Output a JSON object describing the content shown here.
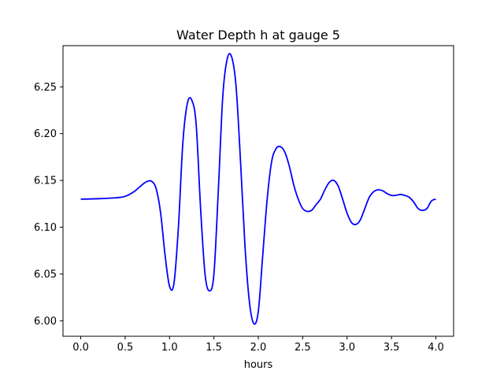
{
  "chart_data": {
    "type": "line",
    "title": "Water Depth h at gauge 5",
    "xlabel": "hours",
    "ylabel": "",
    "xlim": [
      -0.2,
      4.2
    ],
    "ylim": [
      5.9835,
      6.294
    ],
    "xticks": [
      0.0,
      0.5,
      1.0,
      1.5,
      2.0,
      2.5,
      3.0,
      3.5,
      4.0
    ],
    "xtick_labels": [
      "0.0",
      "0.5",
      "1.0",
      "1.5",
      "2.0",
      "2.5",
      "3.0",
      "3.5",
      "4.0"
    ],
    "yticks": [
      6.0,
      6.05,
      6.1,
      6.15,
      6.2,
      6.25
    ],
    "ytick_labels": [
      "6.00",
      "6.05",
      "6.10",
      "6.15",
      "6.20",
      "6.25"
    ],
    "grid": false,
    "series": [
      {
        "color": "#0000ff",
        "x": [
          0.0,
          0.2,
          0.4,
          0.5,
          0.6,
          0.7,
          0.75,
          0.8,
          0.85,
          0.9,
          0.95,
          1.0,
          1.05,
          1.1,
          1.15,
          1.2,
          1.25,
          1.3,
          1.35,
          1.4,
          1.45,
          1.5,
          1.55,
          1.6,
          1.65,
          1.7,
          1.75,
          1.8,
          1.85,
          1.9,
          1.95,
          2.0,
          2.05,
          2.1,
          2.15,
          2.2,
          2.25,
          2.3,
          2.35,
          2.4,
          2.45,
          2.5,
          2.55,
          2.6,
          2.65,
          2.7,
          2.75,
          2.8,
          2.85,
          2.9,
          2.95,
          3.0,
          3.05,
          3.1,
          3.15,
          3.2,
          3.25,
          3.3,
          3.35,
          3.4,
          3.45,
          3.5,
          3.55,
          3.6,
          3.65,
          3.7,
          3.75,
          3.8,
          3.85,
          3.9,
          3.95,
          4.0
        ],
        "y": [
          6.13,
          6.1305,
          6.1315,
          6.133,
          6.138,
          6.146,
          6.149,
          6.149,
          6.141,
          6.115,
          6.07,
          6.037,
          6.04,
          6.1,
          6.19,
          6.232,
          6.236,
          6.21,
          6.12,
          6.05,
          6.032,
          6.05,
          6.14,
          6.24,
          6.28,
          6.282,
          6.25,
          6.17,
          6.08,
          6.02,
          5.997,
          6.01,
          6.07,
          6.13,
          6.17,
          6.184,
          6.186,
          6.18,
          6.165,
          6.145,
          6.13,
          6.12,
          6.117,
          6.118,
          6.124,
          6.13,
          6.14,
          6.148,
          6.15,
          6.144,
          6.13,
          6.115,
          6.105,
          6.103,
          6.108,
          6.12,
          6.132,
          6.138,
          6.14,
          6.139,
          6.136,
          6.134,
          6.134,
          6.135,
          6.134,
          6.132,
          6.127,
          6.12,
          6.118,
          6.12,
          6.128,
          6.13
        ]
      }
    ]
  }
}
